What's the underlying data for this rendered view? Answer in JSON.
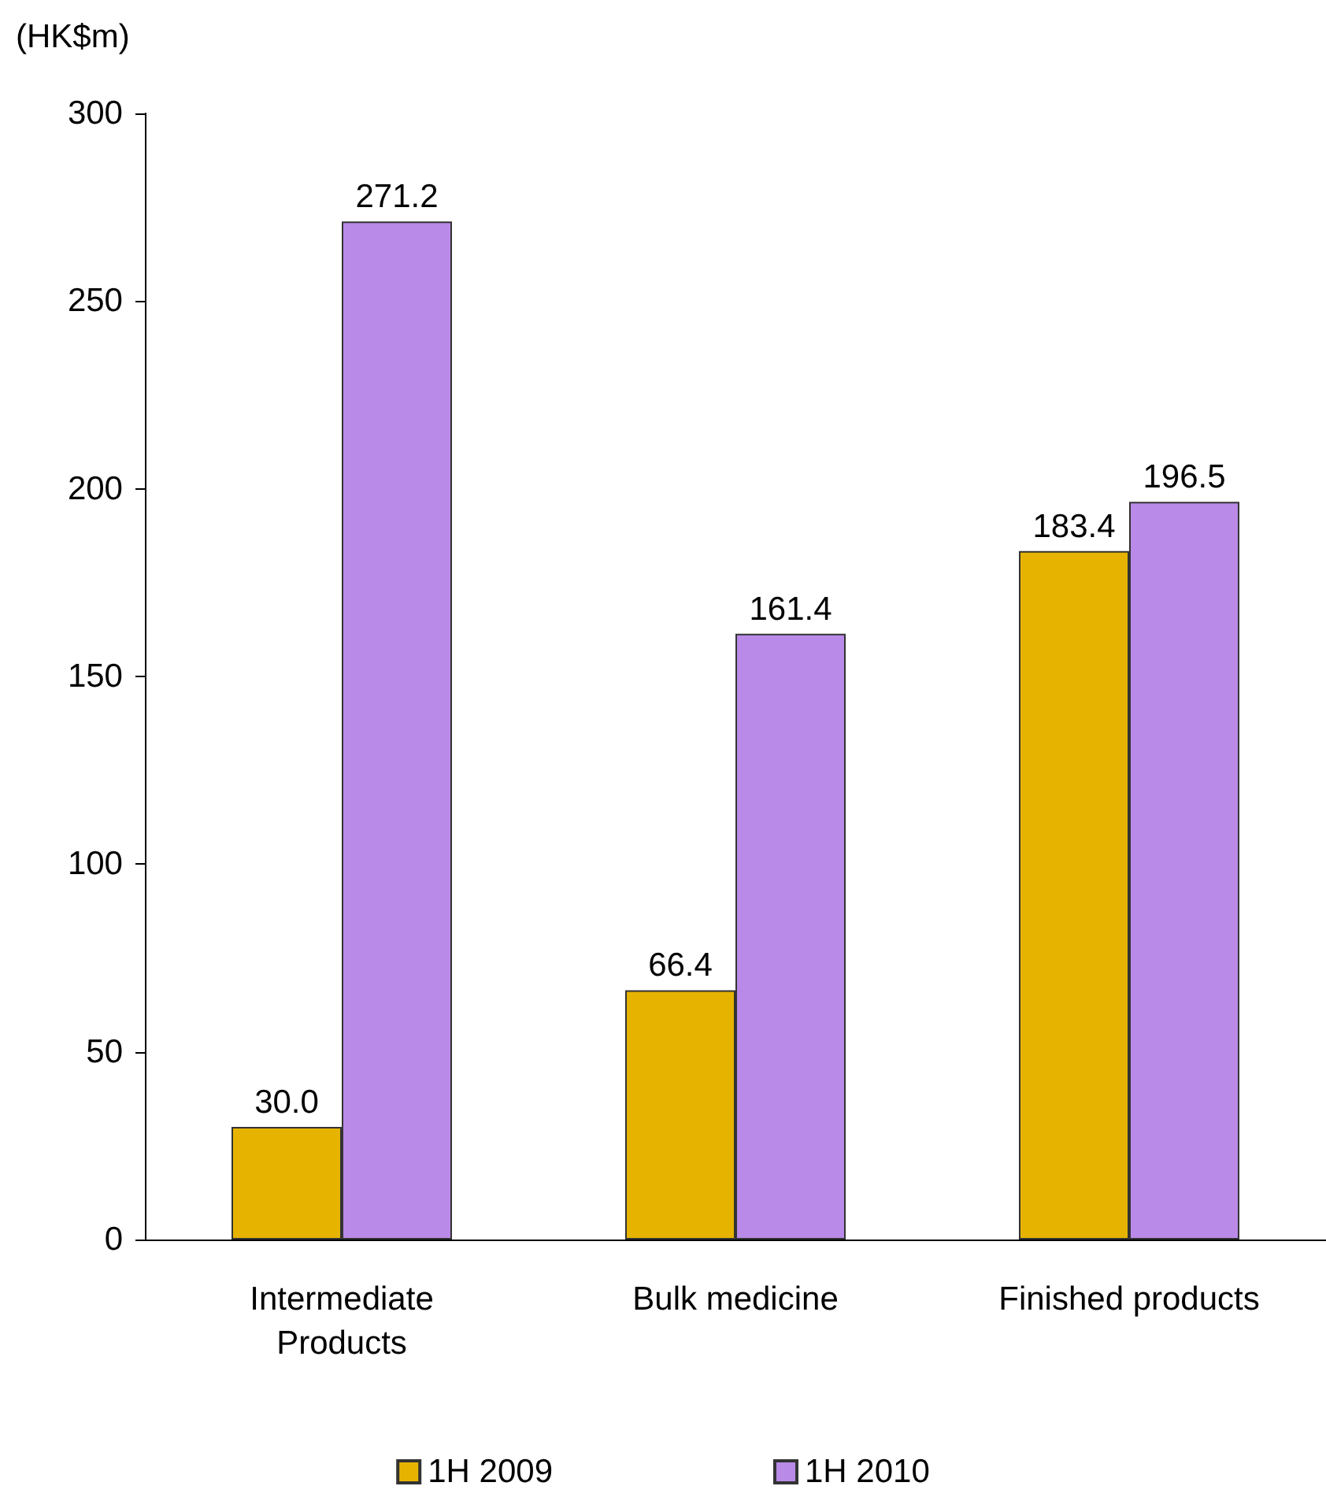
{
  "chart_data": {
    "type": "bar",
    "ylabel": "(HK$m)",
    "categories": [
      "Intermediate\nProducts",
      "Bulk medicine",
      "Finished products"
    ],
    "series": [
      {
        "name": "1H 2009",
        "color": "#e6b400",
        "values": [
          30.0,
          66.4,
          183.4
        ],
        "value_labels": [
          "30.0",
          "66.4",
          "183.4"
        ]
      },
      {
        "name": "1H 2010",
        "color": "#b98ae8",
        "values": [
          271.2,
          161.4,
          196.5
        ],
        "value_labels": [
          "271.2",
          "161.4",
          "196.5"
        ]
      }
    ],
    "ylim": [
      0,
      300
    ],
    "yticks": [
      0,
      50,
      100,
      150,
      200,
      250,
      300
    ],
    "grid": false,
    "legend": "bottom"
  }
}
